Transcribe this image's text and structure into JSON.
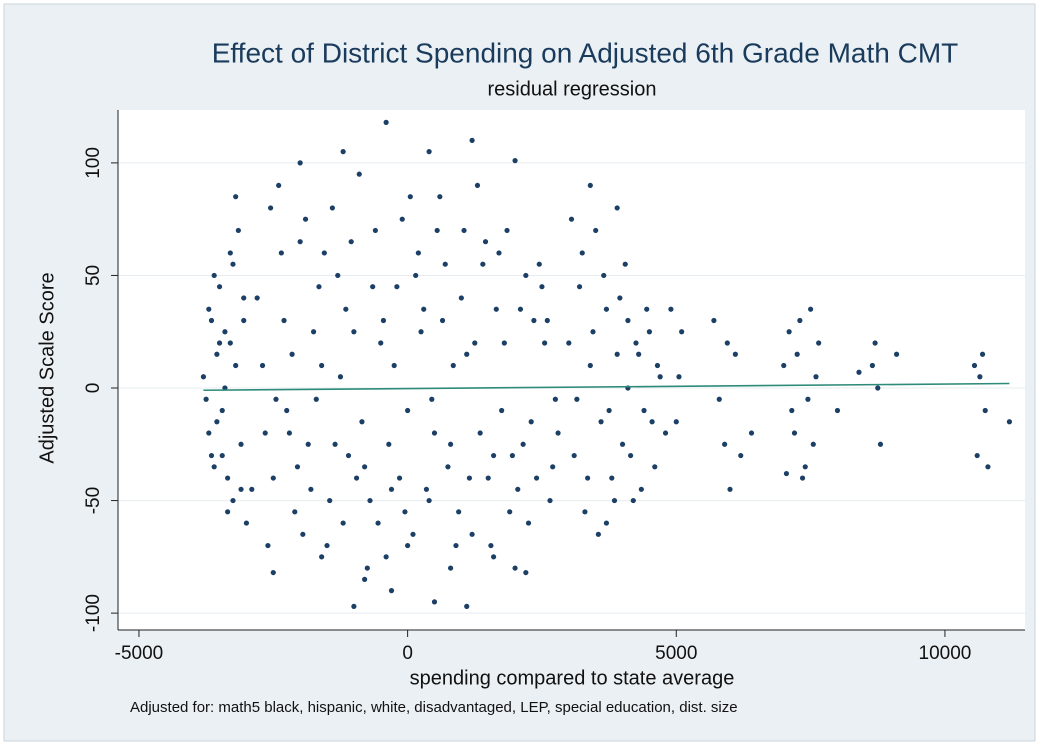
{
  "chart_data": {
    "type": "scatter",
    "title": "Effect of District Spending on Adjusted 6th Grade Math CMT",
    "subtitle": "residual regression",
    "x_label": "spending compared to state average",
    "y_label": "Adjusted Scale Score",
    "note": "Adjusted for: math5 black, hispanic, white, disadvantaged, LEP, special education, dist. size",
    "color": "#1c3f66",
    "grid": true,
    "xlim": [
      -5390,
      11490
    ],
    "ylim": [
      -107.5,
      123.5
    ],
    "xticks": [
      -5000,
      0,
      5000,
      10000
    ],
    "yticks": [
      -100,
      -50,
      0,
      50,
      100
    ],
    "x": [
      -3800,
      -3700,
      -3650,
      -3600,
      -3550,
      -3500,
      -3450,
      -3400,
      -3350,
      -3300,
      -3250,
      -3200,
      -3150,
      -3100,
      -3050,
      -3000,
      -3750,
      -3600,
      -3450,
      -3300,
      -3700,
      -3550,
      -3400,
      -3250,
      -3100,
      -3650,
      -3500,
      -3350,
      -3200,
      -3050,
      -2800,
      -2600,
      -2400,
      -2200,
      -2000,
      -1800,
      -1600,
      -1400,
      -1200,
      -1000,
      -800,
      -600,
      -400,
      -200,
      0,
      200,
      400,
      600,
      800,
      1000,
      1200,
      1400,
      1600,
      1800,
      2000,
      2200,
      2400,
      2600,
      2800,
      -2700,
      -2500,
      -2300,
      -2100,
      -1900,
      -1700,
      -1500,
      -1300,
      -1100,
      -900,
      -700,
      -500,
      -300,
      -100,
      100,
      300,
      500,
      700,
      900,
      1100,
      1300,
      1500,
      1700,
      1900,
      2100,
      2300,
      2500,
      2700,
      -2650,
      -2350,
      -2050,
      -1750,
      -1450,
      -1150,
      -850,
      -550,
      -250,
      50,
      350,
      650,
      950,
      1250,
      1550,
      1850,
      2150,
      2450,
      2750,
      -2550,
      -2250,
      -1950,
      -1650,
      -1350,
      -1050,
      -750,
      -450,
      -150,
      150,
      450,
      750,
      1050,
      1350,
      1650,
      1950,
      2250,
      2550,
      -2450,
      -2150,
      -1850,
      -1550,
      -1250,
      -950,
      -650,
      -350,
      -50,
      250,
      550,
      850,
      1150,
      1450,
      1750,
      2050,
      2350,
      2650,
      -2900,
      -2000,
      -1200,
      -400,
      400,
      1200,
      2000,
      -1600,
      -800,
      0,
      800,
      1600,
      -2500,
      -1000,
      500,
      1100,
      -300,
      2200,
      3000,
      3100,
      3200,
      3300,
      3400,
      3500,
      3600,
      3700,
      3800,
      3900,
      4000,
      4100,
      4200,
      4300,
      4400,
      4500,
      4600,
      4700,
      4800,
      3150,
      3250,
      3350,
      3450,
      3550,
      3650,
      3750,
      3850,
      3950,
      4050,
      4150,
      4250,
      4350,
      4450,
      4550,
      4650,
      3050,
      3400,
      3700,
      3900,
      4100,
      4900,
      5000,
      5100,
      5050,
      5700,
      5800,
      5900,
      6000,
      6100,
      6200,
      7000,
      7100,
      7200,
      7300,
      7400,
      7500,
      7600,
      7150,
      7350,
      7550,
      7250,
      7450,
      7650,
      8000,
      8700,
      8750,
      8800,
      8650,
      9100,
      10600,
      10700,
      10750,
      10800,
      10650,
      11200,
      10550,
      5950,
      6400,
      7050,
      8400
    ],
    "values": [
      5,
      -20,
      30,
      -35,
      15,
      45,
      -10,
      25,
      -40,
      60,
      -50,
      10,
      70,
      -25,
      40,
      -60,
      -5,
      50,
      -30,
      20,
      35,
      -15,
      0,
      55,
      -45,
      -30,
      20,
      -55,
      85,
      30,
      40,
      -70,
      90,
      -20,
      65,
      -45,
      10,
      80,
      -60,
      25,
      -35,
      70,
      -75,
      45,
      -10,
      60,
      -50,
      85,
      -25,
      40,
      -65,
      55,
      -30,
      20,
      -80,
      50,
      -40,
      30,
      -20,
      10,
      -40,
      30,
      -55,
      75,
      -5,
      -70,
      50,
      -30,
      95,
      -50,
      20,
      -45,
      75,
      -65,
      35,
      -20,
      55,
      -70,
      15,
      90,
      -40,
      60,
      -55,
      35,
      -15,
      45,
      -35,
      -20,
      60,
      -35,
      25,
      -50,
      35,
      -15,
      -60,
      10,
      85,
      -45,
      30,
      -55,
      20,
      -70,
      70,
      -25,
      55,
      -5,
      80,
      -10,
      -65,
      45,
      -25,
      65,
      -80,
      30,
      -40,
      50,
      -5,
      -35,
      70,
      -20,
      35,
      -30,
      -60,
      20,
      -5,
      15,
      -25,
      60,
      5,
      -40,
      45,
      -25,
      -55,
      25,
      70,
      10,
      -40,
      65,
      -10,
      -45,
      30,
      -50,
      -45,
      100,
      105,
      118,
      105,
      110,
      101,
      -75,
      -85,
      -70,
      -80,
      -75,
      -82,
      -97,
      -95,
      -97,
      -90,
      -82,
      20,
      -30,
      45,
      -55,
      10,
      70,
      -15,
      35,
      -40,
      80,
      -25,
      30,
      -50,
      15,
      -10,
      25,
      -35,
      5,
      -20,
      -5,
      60,
      -40,
      25,
      -65,
      50,
      -10,
      -50,
      40,
      55,
      -30,
      20,
      -45,
      35,
      -15,
      10,
      75,
      90,
      -60,
      15,
      0,
      35,
      -15,
      25,
      5,
      30,
      -5,
      -25,
      -45,
      15,
      -30,
      10,
      25,
      -20,
      30,
      -35,
      35,
      5,
      -10,
      -40,
      -25,
      15,
      -5,
      20,
      -10,
      20,
      0,
      -25,
      10,
      15,
      -30,
      15,
      -10,
      -35,
      5,
      -15,
      10,
      20,
      -20,
      -38,
      7
    ],
    "fit": {
      "color": "#2e8b7a",
      "x": [
        -3800,
        11200
      ],
      "values": [
        -1,
        2
      ]
    }
  }
}
